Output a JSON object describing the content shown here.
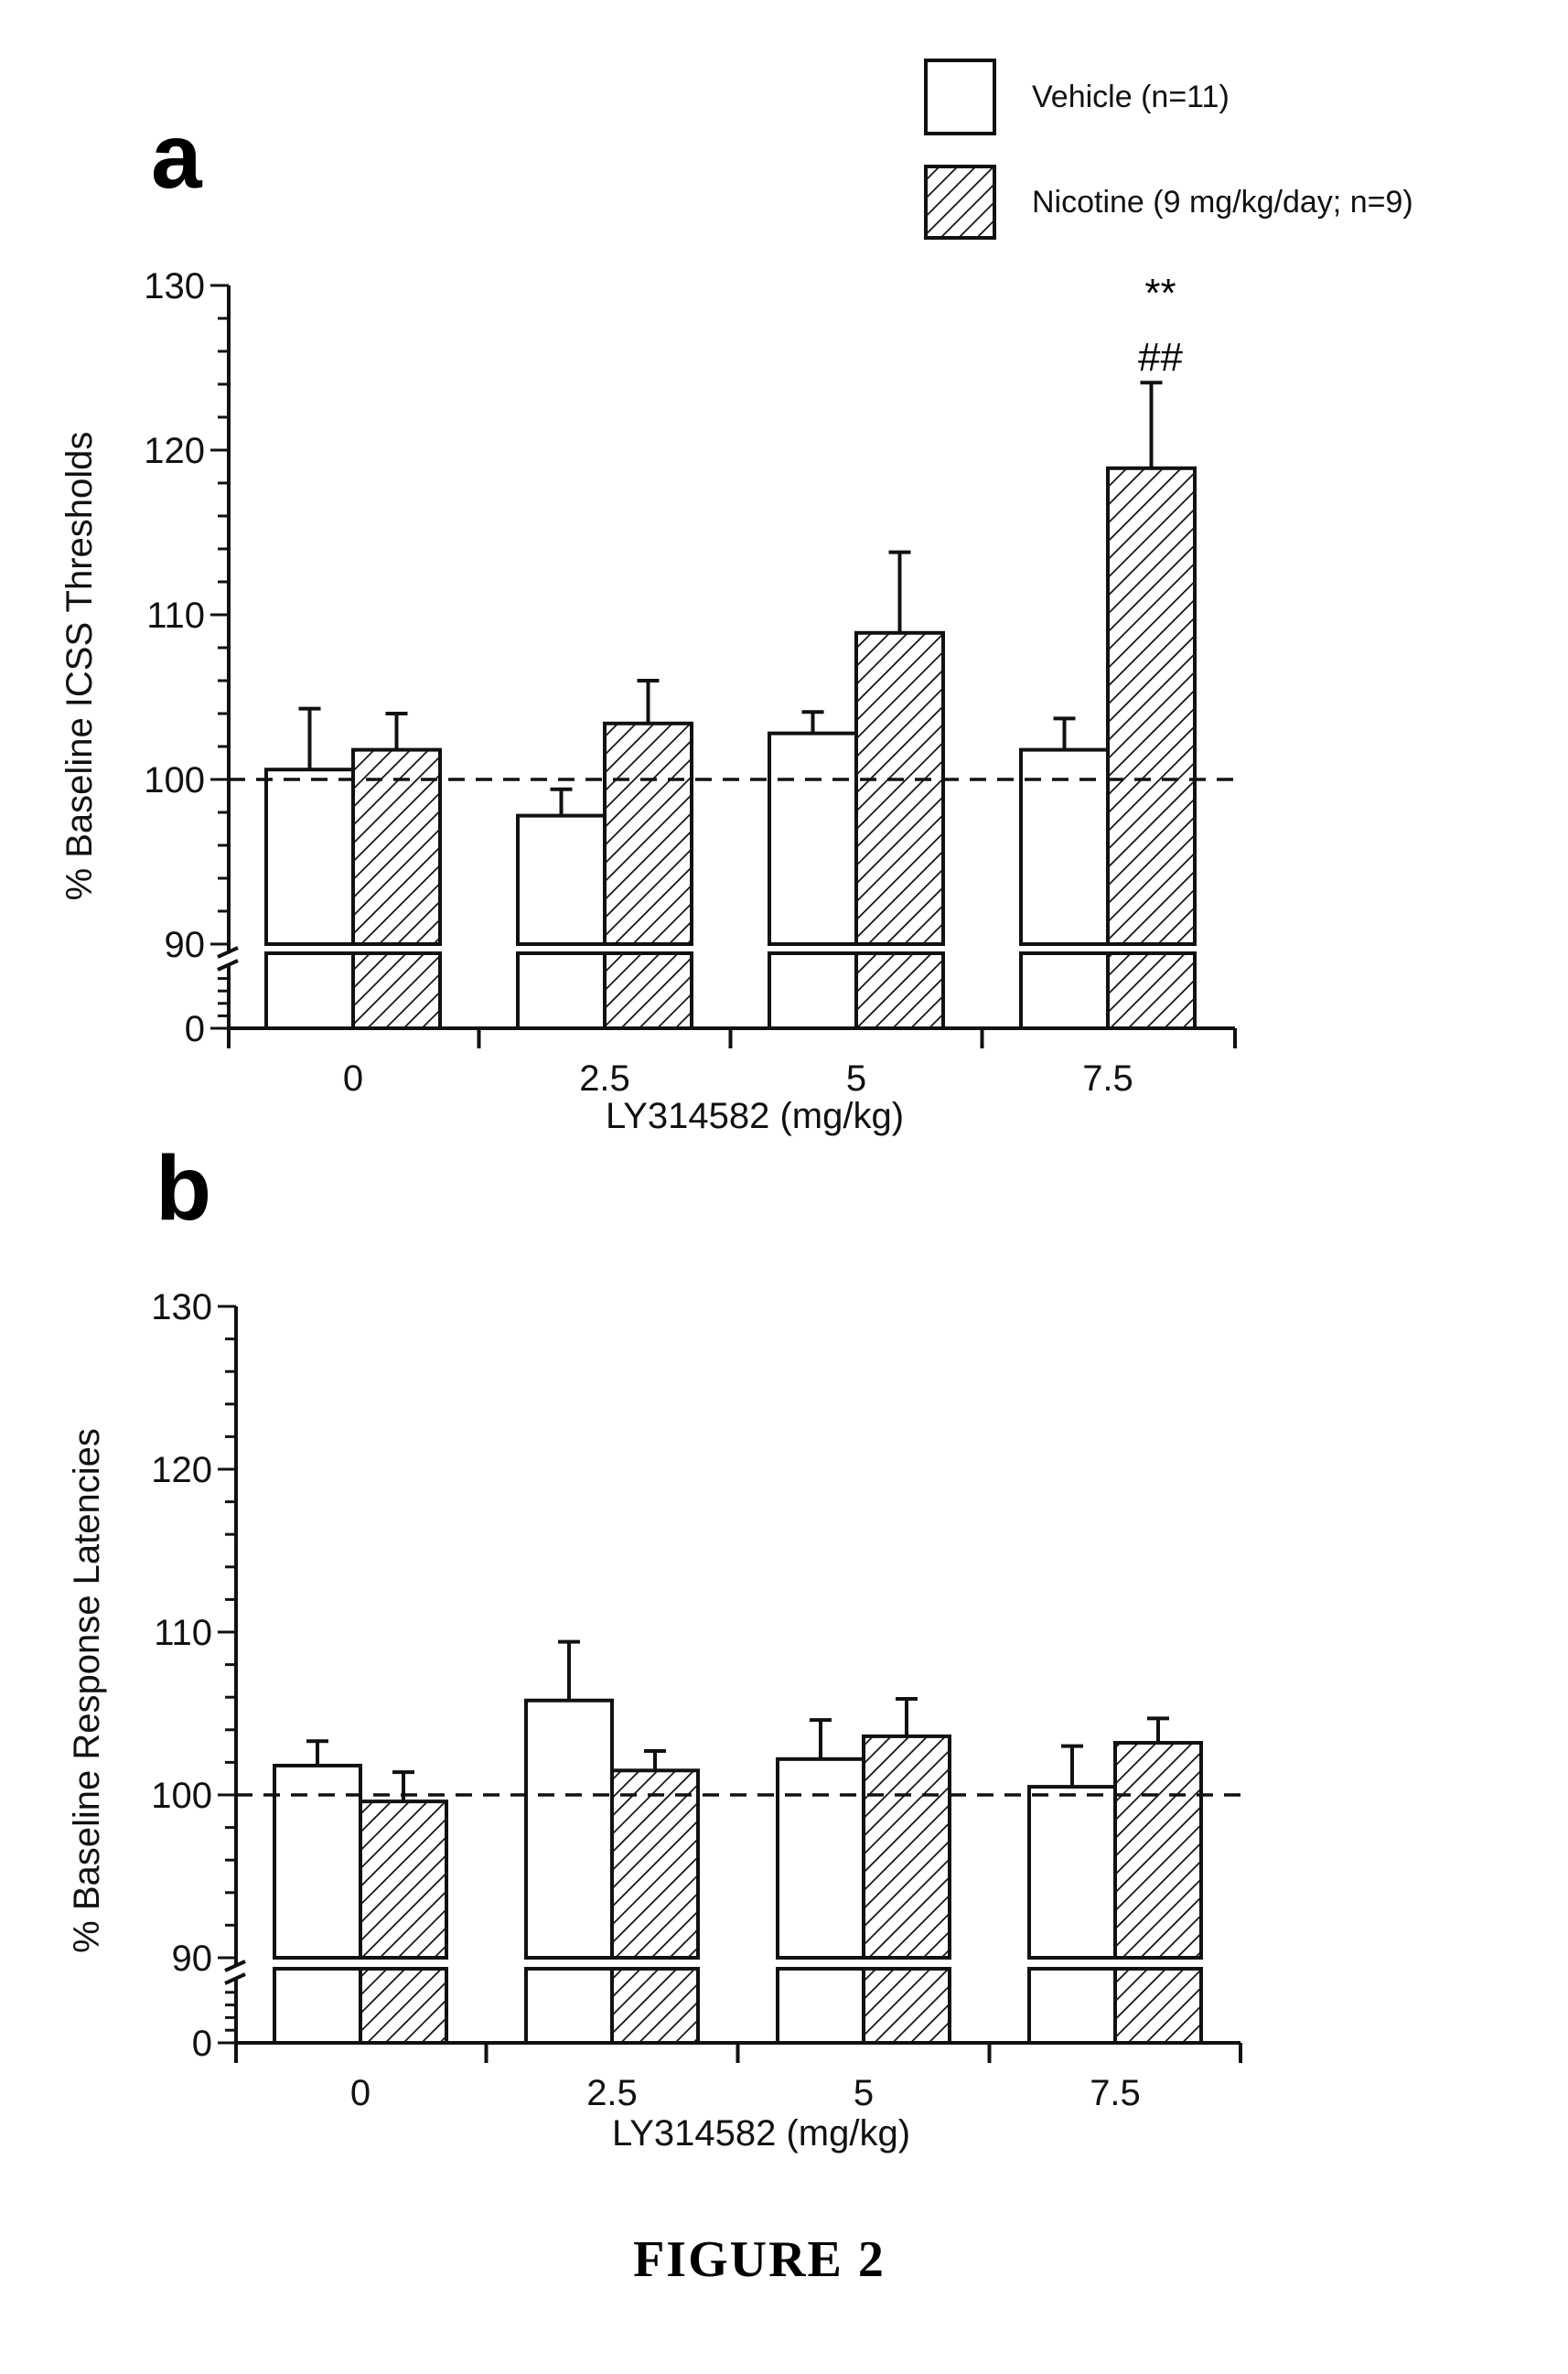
{
  "legend": [
    {
      "label": "Vehicle (n=11)",
      "fill": "plain"
    },
    {
      "label": "Nicotine (9 mg/kg/day; n=9)",
      "fill": "hatched"
    }
  ],
  "caption": "FIGURE 2",
  "colors": {
    "ink": "#111111",
    "bar_fill": "#ffffff",
    "background": "#ffffff"
  },
  "chart_data": [
    {
      "type": "bar",
      "panel": "a",
      "categories": [
        "0",
        "2.5",
        "5",
        "7.5"
      ],
      "xlabel": "LY314582  (mg/kg)",
      "ylabel": "% Baseline ICSS Thresholds",
      "yticks": [
        "0",
        "90",
        "100",
        "110",
        "120",
        "130"
      ],
      "ylim": [
        90,
        130
      ],
      "axis_break": true,
      "reference_line": 100,
      "series": [
        {
          "name": "Vehicle (n=11)",
          "values": [
            100.6,
            97.8,
            102.8,
            101.8
          ],
          "errors": [
            3.7,
            1.6,
            1.3,
            1.9
          ]
        },
        {
          "name": "Nicotine (9 mg/kg/day; n=9)",
          "values": [
            101.8,
            103.4,
            108.9,
            118.9
          ],
          "errors": [
            2.2,
            2.6,
            4.9,
            5.2
          ]
        }
      ],
      "annotations": [
        {
          "category": "7.5",
          "lines": [
            "**",
            "##"
          ]
        }
      ]
    },
    {
      "type": "bar",
      "panel": "b",
      "categories": [
        "0",
        "2.5",
        "5",
        "7.5"
      ],
      "xlabel": "LY314582 (mg/kg)",
      "ylabel": "% Baseline Response Latencies",
      "yticks": [
        "0",
        "90",
        "100",
        "110",
        "120",
        "130"
      ],
      "ylim": [
        90,
        130
      ],
      "axis_break": true,
      "reference_line": 100,
      "series": [
        {
          "name": "Vehicle (n=11)",
          "values": [
            101.8,
            105.8,
            102.2,
            100.5
          ],
          "errors": [
            1.5,
            3.6,
            2.4,
            2.5
          ]
        },
        {
          "name": "Nicotine (9 mg/kg/day; n=9)",
          "values": [
            99.6,
            101.5,
            103.6,
            103.2
          ],
          "errors": [
            1.8,
            1.2,
            2.3,
            1.5
          ]
        }
      ],
      "annotations": []
    }
  ]
}
